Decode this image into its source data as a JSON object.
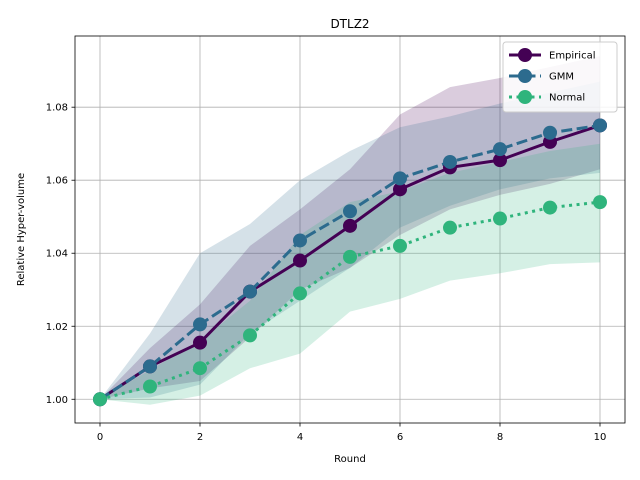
{
  "chart_data": {
    "type": "line",
    "title": "DTLZ2",
    "xlabel": "Round",
    "ylabel": "Relative Hyper-volume",
    "xlim": [
      -0.5,
      10.5
    ],
    "ylim": [
      0.9935,
      1.0995
    ],
    "xticks": [
      0,
      2,
      4,
      6,
      8,
      10
    ],
    "yticks": [
      1.0,
      1.02,
      1.04,
      1.06,
      1.08
    ],
    "ytick_labels": [
      "1.00",
      "1.02",
      "1.04",
      "1.06",
      "1.08"
    ],
    "grid": true,
    "legend_position": "top-right",
    "x": [
      0,
      1,
      2,
      3,
      4,
      5,
      6,
      7,
      8,
      9,
      10
    ],
    "series": [
      {
        "name": "Empirical",
        "color": "#440154",
        "style": "solid",
        "values": [
          1.0,
          1.009,
          1.0155,
          1.0295,
          1.038,
          1.0475,
          1.0575,
          1.0635,
          1.0655,
          1.0705,
          1.075
        ],
        "band_low": [
          1.0,
          1.003,
          1.005,
          1.017,
          1.03,
          1.036,
          1.045,
          1.052,
          1.056,
          1.059,
          1.063
        ],
        "band_high": [
          1.0,
          1.014,
          1.026,
          1.042,
          1.052,
          1.063,
          1.078,
          1.0855,
          1.088,
          1.091,
          1.094
        ]
      },
      {
        "name": "GMM",
        "color": "#2c6b8e",
        "style": "dashed",
        "values": [
          1.0,
          1.009,
          1.0205,
          1.0295,
          1.0435,
          1.0515,
          1.0605,
          1.065,
          1.0685,
          1.073,
          1.075
        ],
        "band_low": [
          1.0,
          1.0005,
          1.004,
          1.018,
          1.027,
          1.036,
          1.047,
          1.053,
          1.0575,
          1.0605,
          1.062
        ],
        "band_high": [
          1.0,
          1.018,
          1.04,
          1.048,
          1.06,
          1.068,
          1.0745,
          1.0775,
          1.081,
          1.084,
          1.087
        ]
      },
      {
        "name": "Normal",
        "color": "#2fb47c",
        "style": "dotted",
        "values": [
          1.0,
          1.0035,
          1.0085,
          1.0175,
          1.029,
          1.039,
          1.042,
          1.047,
          1.0495,
          1.0525,
          1.054
        ],
        "band_low": [
          1.0,
          0.9985,
          1.001,
          1.0085,
          1.0125,
          1.024,
          1.0275,
          1.0325,
          1.0345,
          1.037,
          1.0375
        ],
        "band_high": [
          1.0,
          1.008,
          1.016,
          1.027,
          1.045,
          1.054,
          1.057,
          1.062,
          1.065,
          1.068,
          1.07
        ]
      }
    ]
  }
}
